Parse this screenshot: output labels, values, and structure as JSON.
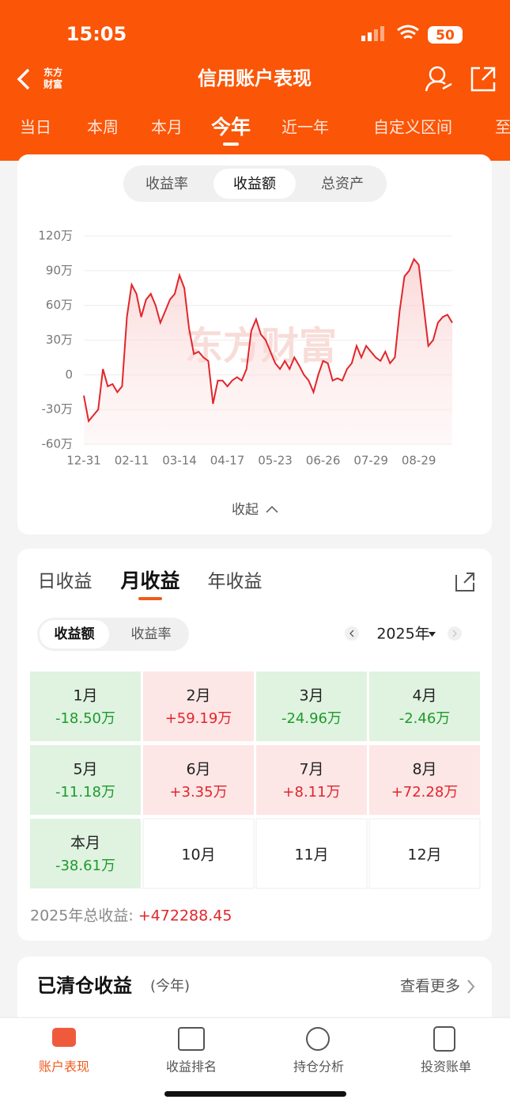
{
  "status_bar": {
    "time": "15:05",
    "battery": "50"
  },
  "header": {
    "logo_lines": [
      "东方",
      "财富"
    ],
    "title": "信用账户表现"
  },
  "period_tabs": {
    "items": [
      "当日",
      "本周",
      "本月",
      "今年",
      "近一年",
      "自定义区间",
      "至"
    ],
    "active": 3
  },
  "metric_tabs": {
    "items": [
      "收益率",
      "收益额",
      "总资产"
    ],
    "active": 1
  },
  "chart_data": {
    "type": "line",
    "watermark": "东方财富",
    "color": "#e0262b",
    "grid": true,
    "ylim": [
      -60,
      120
    ],
    "yticks": [
      {
        "value": -60,
        "label": "-60万"
      },
      {
        "value": -30,
        "label": "-30万"
      },
      {
        "value": 0,
        "label": "0"
      },
      {
        "value": 30,
        "label": "30万"
      },
      {
        "value": 60,
        "label": "60万"
      },
      {
        "value": 90,
        "label": "90万"
      },
      {
        "value": 120,
        "label": "120万"
      }
    ],
    "categories": [
      "12-31",
      null,
      null,
      null,
      null,
      null,
      null,
      null,
      null,
      null,
      "02-11",
      null,
      null,
      null,
      null,
      null,
      null,
      null,
      null,
      null,
      "03-14",
      null,
      null,
      null,
      null,
      null,
      null,
      null,
      null,
      null,
      "04-17",
      null,
      null,
      null,
      null,
      null,
      null,
      null,
      null,
      null,
      "05-23",
      null,
      null,
      null,
      null,
      null,
      null,
      null,
      null,
      null,
      "06-26",
      null,
      null,
      null,
      null,
      null,
      null,
      null,
      null,
      null,
      "07-29",
      null,
      null,
      null,
      null,
      null,
      null,
      null,
      null,
      null,
      "08-29",
      null,
      null,
      null,
      null,
      null,
      null,
      null
    ],
    "values": [
      -18,
      -40,
      -35,
      -30,
      5,
      -10,
      -8,
      -15,
      -10,
      50,
      78,
      70,
      50,
      65,
      70,
      60,
      45,
      55,
      65,
      70,
      86,
      75,
      40,
      18,
      20,
      15,
      12,
      -25,
      -5,
      -5,
      -10,
      -5,
      -2,
      -5,
      5,
      38,
      48,
      35,
      30,
      20,
      10,
      5,
      12,
      5,
      15,
      8,
      0,
      -5,
      -15,
      0,
      12,
      10,
      -5,
      -3,
      -5,
      5,
      10,
      25,
      15,
      25,
      20,
      15,
      12,
      20,
      10,
      15,
      55,
      85,
      90,
      100,
      95,
      60,
      25,
      30,
      45,
      50,
      52,
      45
    ]
  },
  "collapse": "收起",
  "monthly": {
    "tabs": [
      "日收益",
      "月收益",
      "年收益"
    ],
    "active_tab": 1,
    "toggles": [
      "收益额",
      "收益率"
    ],
    "active_toggle": 0,
    "year": "2025年",
    "months": [
      {
        "label": "1月",
        "value": "-18.50万"
      },
      {
        "label": "2月",
        "value": "+59.19万"
      },
      {
        "label": "3月",
        "value": "-24.96万"
      },
      {
        "label": "4月",
        "value": "-2.46万"
      },
      {
        "label": "5月",
        "value": "-11.18万"
      },
      {
        "label": "6月",
        "value": "+3.35万"
      },
      {
        "label": "7月",
        "value": "+8.11万"
      },
      {
        "label": "8月",
        "value": "+72.28万"
      },
      {
        "label": "本月",
        "value": "-38.61万"
      },
      {
        "label": "10月"
      },
      {
        "label": "11月"
      },
      {
        "label": "12月"
      }
    ],
    "total_label": "2025年总收益:",
    "total_value": "+472288.45"
  },
  "closed": {
    "title": "已清仓收益",
    "period": "(今年)",
    "more": "查看更多"
  },
  "nav": {
    "items": [
      "账户表现",
      "收益排名",
      "持仓分析",
      "投资账单"
    ],
    "active": 0
  }
}
